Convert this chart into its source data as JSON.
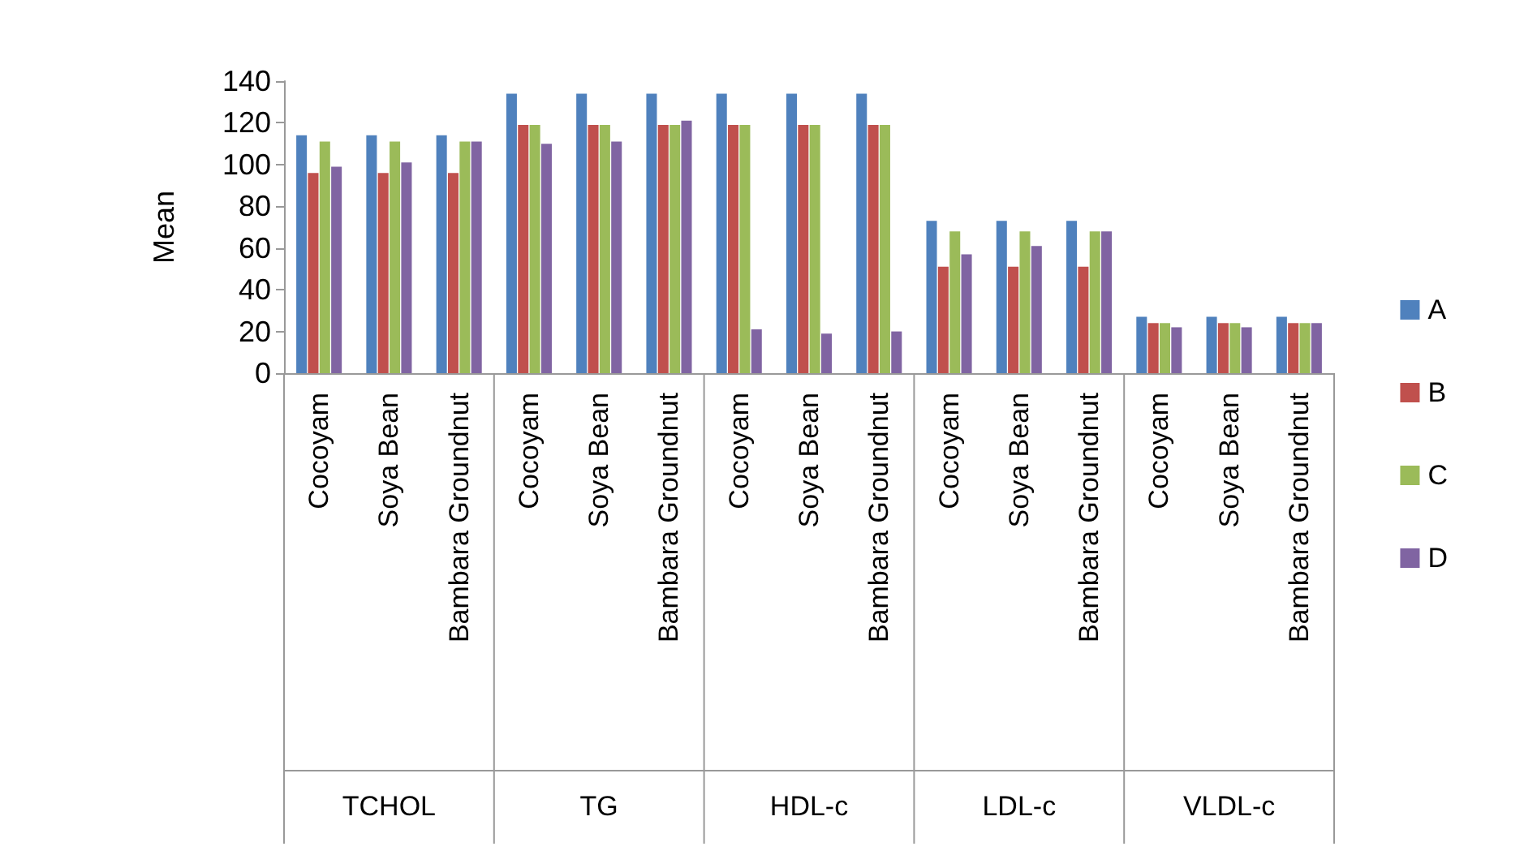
{
  "chart_data": {
    "type": "bar",
    "ylabel": "Mean",
    "categories": [
      "Cocoyam",
      "Soya Bean",
      "Bambara Groundnut",
      "Cocoyam",
      "Soya Bean",
      "Bambara Groundnut",
      "Cocoyam",
      "Soya Bean",
      "Bambara Groundnut",
      "Cocoyam",
      "Soya Bean",
      "Bambara Groundnut",
      "Cocoyam",
      "Soya Bean",
      "Bambara Groundnut"
    ],
    "series": [
      {
        "name": "A",
        "color": "#4f81bd",
        "values": [
          114,
          114,
          114,
          134,
          134,
          134,
          134,
          134,
          134,
          73,
          73,
          73,
          27,
          27,
          27
        ]
      },
      {
        "name": "B",
        "color": "#c0504d",
        "values": [
          96,
          96,
          96,
          119,
          119,
          119,
          119,
          119,
          119,
          51,
          51,
          51,
          24,
          24,
          24
        ]
      },
      {
        "name": "C",
        "color": "#9bbb59",
        "values": [
          111,
          111,
          111,
          119,
          119,
          119,
          119,
          119,
          119,
          68,
          68,
          68,
          24,
          24,
          24
        ]
      },
      {
        "name": "D",
        "color": "#8064a2",
        "values": [
          99,
          101,
          111,
          110,
          111,
          121,
          21,
          19,
          20,
          57,
          61,
          68,
          22,
          22,
          24
        ]
      }
    ],
    "annotations": [
      "TCHOL",
      "TG",
      "HDL-c",
      "LDL-c",
      "VLDL-c"
    ],
    "ylim": [
      0,
      140
    ],
    "yticks": [
      0,
      20,
      40,
      60,
      80,
      100,
      120,
      140
    ],
    "grid": false,
    "legend": "right"
  }
}
